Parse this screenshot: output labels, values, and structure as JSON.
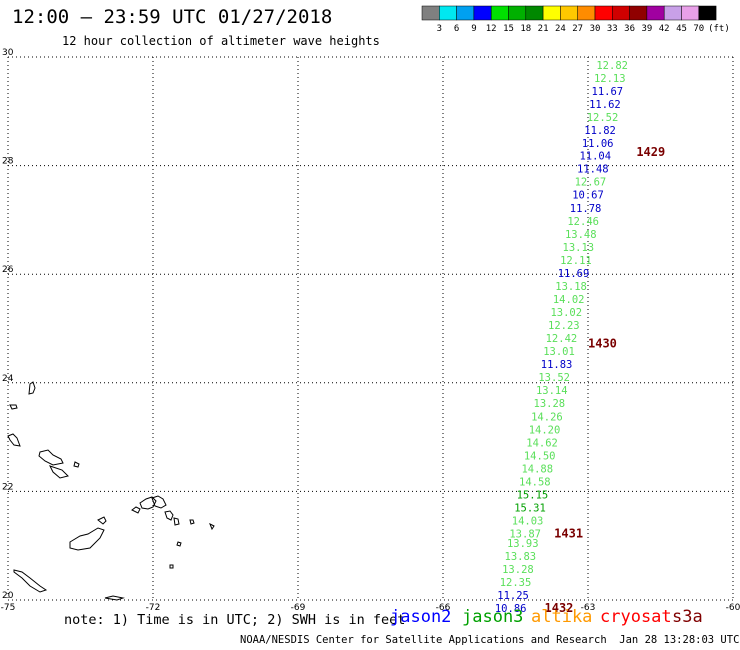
{
  "header": {
    "title": "12:00 — 23:59 UTC 01/27/2018",
    "subtitle": "12 hour collection of altimeter wave heights"
  },
  "colorbar": {
    "unit": "(ft)",
    "bins": [
      {
        "label": "3",
        "color": "#808080"
      },
      {
        "label": "6",
        "color": "#00e8f0"
      },
      {
        "label": "9",
        "color": "#00a0f0"
      },
      {
        "label": "12",
        "color": "#0000ff"
      },
      {
        "label": "15",
        "color": "#00e000"
      },
      {
        "label": "18",
        "color": "#00b000"
      },
      {
        "label": "21",
        "color": "#008800"
      },
      {
        "label": "24",
        "color": "#ffff00"
      },
      {
        "label": "27",
        "color": "#ffc800"
      },
      {
        "label": "30",
        "color": "#ff8c00"
      },
      {
        "label": "33",
        "color": "#ff0000"
      },
      {
        "label": "36",
        "color": "#d00000"
      },
      {
        "label": "39",
        "color": "#900000"
      },
      {
        "label": "42",
        "color": "#a000a0"
      },
      {
        "label": "45",
        "color": "#c8a0e8"
      },
      {
        "label": "70",
        "color": "#e8a0e8"
      },
      {
        "label": "",
        "color": "#000000"
      }
    ]
  },
  "map": {
    "lon_range": [
      -75,
      -60
    ],
    "lat_range": [
      20,
      30
    ],
    "lon_ticks": [
      "-75",
      "-72",
      "-69",
      "-66",
      "-63",
      "-60"
    ],
    "lat_ticks": [
      "30",
      "28",
      "26",
      "24",
      "22",
      "20"
    ],
    "grid": true
  },
  "observations": [
    {
      "lat": 29.78,
      "lon": -62.5,
      "value": "12.82",
      "color": "#5adf5a"
    },
    {
      "lat": 29.54,
      "lon": -62.55,
      "value": "12.13",
      "color": "#5adf5a"
    },
    {
      "lat": 29.3,
      "lon": -62.6,
      "value": "11.67",
      "color": "#0000c8"
    },
    {
      "lat": 29.06,
      "lon": -62.65,
      "value": "11.62",
      "color": "#0000c8"
    },
    {
      "lat": 28.82,
      "lon": -62.7,
      "value": "12.52",
      "color": "#5adf5a"
    },
    {
      "lat": 28.58,
      "lon": -62.75,
      "value": "11.82",
      "color": "#0000c8"
    },
    {
      "lat": 28.34,
      "lon": -62.8,
      "value": "11.06",
      "color": "#0000c8"
    },
    {
      "lat": 28.11,
      "lon": -62.85,
      "value": "11.04",
      "color": "#0000c8"
    },
    {
      "lat": 27.87,
      "lon": -62.9,
      "value": "11.48",
      "color": "#0000c8"
    },
    {
      "lat": 27.63,
      "lon": -62.95,
      "value": "12.67",
      "color": "#5adf5a"
    },
    {
      "lat": 27.39,
      "lon": -63.0,
      "value": "10.67",
      "color": "#0000c8"
    },
    {
      "lat": 27.15,
      "lon": -63.05,
      "value": "11.78",
      "color": "#0000c8"
    },
    {
      "lat": 26.91,
      "lon": -63.1,
      "value": "12.46",
      "color": "#5adf5a"
    },
    {
      "lat": 26.67,
      "lon": -63.15,
      "value": "13.48",
      "color": "#5adf5a"
    },
    {
      "lat": 26.43,
      "lon": -63.2,
      "value": "13.13",
      "color": "#5adf5a"
    },
    {
      "lat": 26.19,
      "lon": -63.25,
      "value": "12.11",
      "color": "#5adf5a"
    },
    {
      "lat": 25.95,
      "lon": -63.3,
      "value": "11.69",
      "color": "#0000c8"
    },
    {
      "lat": 25.71,
      "lon": -63.35,
      "value": "13.18",
      "color": "#5adf5a"
    },
    {
      "lat": 25.47,
      "lon": -63.4,
      "value": "14.02",
      "color": "#5adf5a"
    },
    {
      "lat": 25.23,
      "lon": -63.45,
      "value": "13.02",
      "color": "#5adf5a"
    },
    {
      "lat": 24.99,
      "lon": -63.5,
      "value": "12.23",
      "color": "#5adf5a"
    },
    {
      "lat": 24.75,
      "lon": -63.55,
      "value": "12.42",
      "color": "#5adf5a"
    },
    {
      "lat": 24.51,
      "lon": -63.6,
      "value": "13.01",
      "color": "#5adf5a"
    },
    {
      "lat": 24.27,
      "lon": -63.65,
      "value": "11.83",
      "color": "#0000c8"
    },
    {
      "lat": 24.03,
      "lon": -63.7,
      "value": "13.52",
      "color": "#5adf5a"
    },
    {
      "lat": 23.79,
      "lon": -63.75,
      "value": "13.14",
      "color": "#5adf5a"
    },
    {
      "lat": 23.55,
      "lon": -63.8,
      "value": "13.28",
      "color": "#5adf5a"
    },
    {
      "lat": 23.31,
      "lon": -63.85,
      "value": "14.26",
      "color": "#5adf5a"
    },
    {
      "lat": 23.07,
      "lon": -63.9,
      "value": "14.20",
      "color": "#5adf5a"
    },
    {
      "lat": 22.83,
      "lon": -63.95,
      "value": "14.62",
      "color": "#5adf5a"
    },
    {
      "lat": 22.59,
      "lon": -64.0,
      "value": "14.50",
      "color": "#5adf5a"
    },
    {
      "lat": 22.35,
      "lon": -64.05,
      "value": "14.88",
      "color": "#5adf5a"
    },
    {
      "lat": 22.11,
      "lon": -64.1,
      "value": "14.58",
      "color": "#5adf5a"
    },
    {
      "lat": 21.87,
      "lon": -64.15,
      "value": "15.15",
      "color": "#00a000"
    },
    {
      "lat": 21.63,
      "lon": -64.2,
      "value": "15.31",
      "color": "#00a000"
    },
    {
      "lat": 21.39,
      "lon": -64.25,
      "value": "14.03",
      "color": "#5adf5a"
    },
    {
      "lat": 21.15,
      "lon": -64.3,
      "value": "13.87",
      "color": "#5adf5a"
    },
    {
      "lat": 20.98,
      "lon": -64.35,
      "value": "13.93",
      "color": "#5adf5a"
    },
    {
      "lat": 20.74,
      "lon": -64.4,
      "value": "13.83",
      "color": "#5adf5a"
    },
    {
      "lat": 20.5,
      "lon": -64.45,
      "value": "13.28",
      "color": "#5adf5a"
    },
    {
      "lat": 20.26,
      "lon": -64.5,
      "value": "12.35",
      "color": "#5adf5a"
    },
    {
      "lat": 20.02,
      "lon": -64.55,
      "value": "11.25",
      "color": "#0000c8"
    },
    {
      "lat": 19.78,
      "lon": -64.6,
      "value": "10.86",
      "color": "#0000c8"
    }
  ],
  "times": [
    {
      "lat": 28.18,
      "lon": -62.0,
      "label": "1429"
    },
    {
      "lat": 24.65,
      "lon": -63.0,
      "label": "1430"
    },
    {
      "lat": 21.15,
      "lon": -63.7,
      "label": "1431"
    },
    {
      "lat": 19.78,
      "lon": -63.9,
      "label": "1432"
    }
  ],
  "footer": {
    "note": "note: 1) Time is in UTC; 2) SWH is in feet",
    "legend": [
      {
        "label": "jason2",
        "color": "#0000ff"
      },
      {
        "label": "jason3",
        "color": "#00a000"
      },
      {
        "label": "altika",
        "color": "#ff9900"
      },
      {
        "label": "cryosat",
        "color": "#ff0000"
      },
      {
        "label": "s3a",
        "color": "#800000"
      }
    ],
    "credit": "NOAA/NESDIS Center for Satellite Applications and Research  Jan 28 13:28:03 UTC 2018"
  }
}
